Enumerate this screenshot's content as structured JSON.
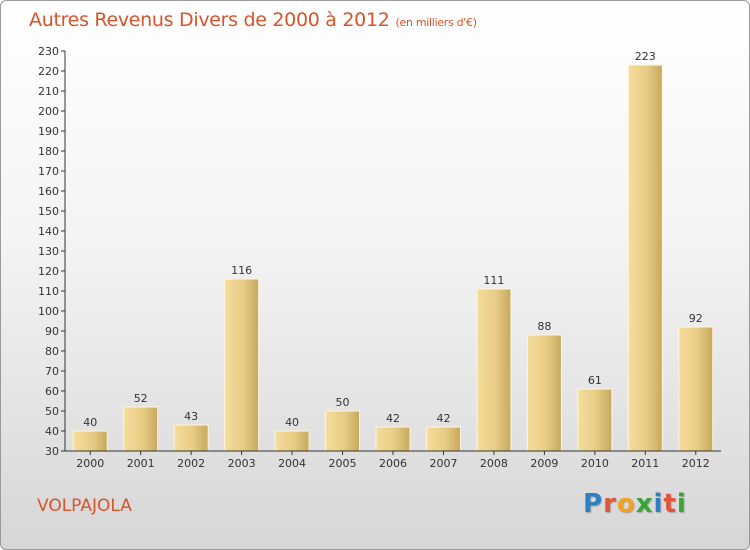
{
  "chart_data": {
    "type": "bar",
    "title": "Autres Revenus Divers de 2000 à 2012",
    "unit_label": "(en milliers d'€)",
    "categories": [
      "2000",
      "2001",
      "2002",
      "2003",
      "2004",
      "2005",
      "2006",
      "2007",
      "2008",
      "2009",
      "2010",
      "2011",
      "2012"
    ],
    "values": [
      40,
      52,
      43,
      116,
      40,
      50,
      42,
      42,
      111,
      88,
      61,
      223,
      92
    ],
    "ylim": [
      30,
      230
    ],
    "ytick_step": 10,
    "grid": false,
    "bar_color": "#e6c77e"
  },
  "footer": {
    "place": "VOLPAJOLA",
    "brand_letters": [
      {
        "char": "P",
        "color": "#2e7fc4"
      },
      {
        "char": "r",
        "color": "#e0553a"
      },
      {
        "char": "o",
        "color": "#f2a223"
      },
      {
        "char": "x",
        "color": "#3aa435"
      },
      {
        "char": "i",
        "color": "#2e7fc4"
      },
      {
        "char": "t",
        "color": "#e0553a"
      },
      {
        "char": "i",
        "color": "#3aa435"
      }
    ]
  },
  "colors": {
    "title": "#d8532a",
    "place": "#d8532a"
  }
}
